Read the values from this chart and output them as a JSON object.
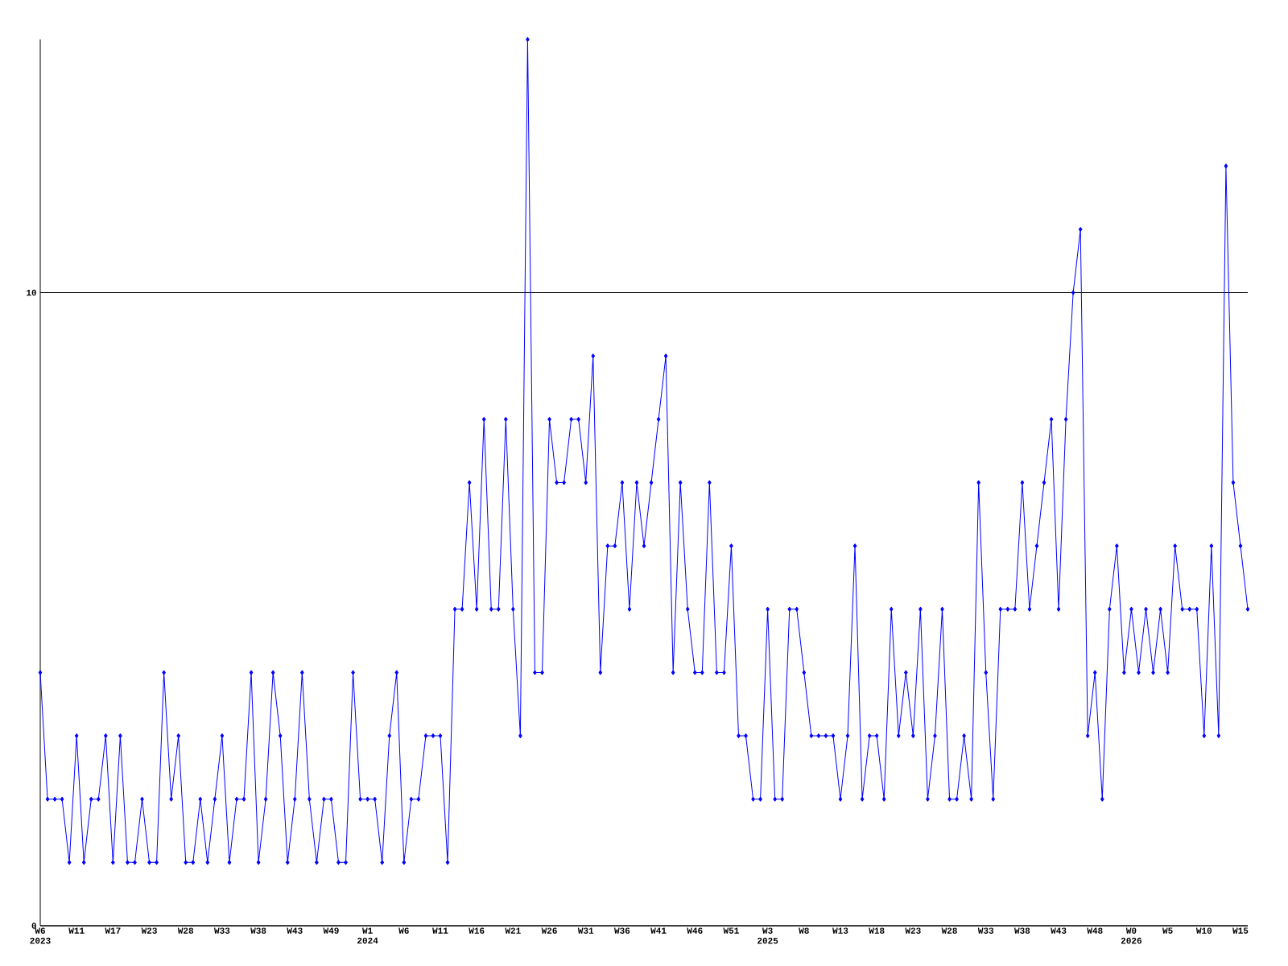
{
  "chart_data": {
    "type": "line",
    "categories": [
      "W6 2023",
      null,
      null,
      null,
      null,
      "W11",
      null,
      null,
      null,
      null,
      "W17",
      null,
      null,
      null,
      null,
      "W23",
      null,
      null,
      null,
      null,
      "W28",
      null,
      null,
      null,
      null,
      "W33",
      null,
      null,
      null,
      null,
      "W38",
      null,
      null,
      null,
      null,
      "W43",
      null,
      null,
      null,
      null,
      "W49",
      null,
      null,
      null,
      null,
      "W1 2024",
      null,
      null,
      null,
      null,
      "W6",
      null,
      null,
      null,
      null,
      "W11",
      null,
      null,
      null,
      null,
      "W16",
      null,
      null,
      null,
      null,
      "W21",
      null,
      null,
      null,
      null,
      "W26",
      null,
      null,
      null,
      null,
      "W31",
      null,
      null,
      null,
      null,
      "W36",
      null,
      null,
      null,
      null,
      "W41",
      null,
      null,
      null,
      null,
      "W46",
      null,
      null,
      null,
      null,
      "W51",
      null,
      null,
      null,
      null,
      "W3 2025",
      null,
      null,
      null,
      null,
      "W8",
      null,
      null,
      null,
      null,
      "W13",
      null,
      null,
      null,
      null,
      "W18",
      null,
      null,
      null,
      null,
      "W23",
      null,
      null,
      null,
      null,
      "W28",
      null,
      null,
      null,
      null,
      "W33",
      null,
      null,
      null,
      null,
      "W38",
      null,
      null,
      null,
      null,
      "W43",
      null,
      null,
      null,
      null,
      "W48",
      null,
      null,
      null,
      null,
      "W0 2026",
      null,
      null,
      null,
      null,
      "W5",
      null,
      null,
      null,
      null,
      "W10",
      null,
      null,
      null,
      null,
      "W15",
      null
    ],
    "values": [
      4,
      2,
      2,
      2,
      1,
      3,
      1,
      2,
      2,
      3,
      1,
      3,
      1,
      1,
      2,
      1,
      1,
      4,
      2,
      3,
      1,
      1,
      2,
      1,
      2,
      3,
      1,
      2,
      2,
      4,
      1,
      2,
      4,
      3,
      1,
      2,
      4,
      2,
      1,
      2,
      2,
      1,
      1,
      4,
      2,
      2,
      2,
      1,
      3,
      4,
      1,
      2,
      2,
      3,
      3,
      3,
      1,
      5,
      5,
      7,
      5,
      8,
      5,
      5,
      8,
      5,
      3,
      14,
      4,
      4,
      8,
      7,
      7,
      8,
      8,
      7,
      9,
      4,
      6,
      6,
      7,
      5,
      7,
      6,
      7,
      8,
      9,
      4,
      7,
      5,
      4,
      4,
      7,
      4,
      4,
      6,
      3,
      3,
      2,
      2,
      5,
      2,
      2,
      5,
      5,
      4,
      3,
      3,
      3,
      3,
      2,
      3,
      6,
      2,
      3,
      3,
      2,
      5,
      3,
      4,
      3,
      5,
      2,
      3,
      5,
      2,
      2,
      3,
      2,
      7,
      4,
      2,
      5,
      5,
      5,
      7,
      5,
      6,
      7,
      8,
      5,
      8,
      10,
      11,
      3,
      4,
      2,
      5,
      6,
      4,
      5,
      4,
      5,
      4,
      5,
      4,
      6,
      5,
      5,
      5,
      3,
      6,
      3,
      12,
      7,
      6,
      5
    ],
    "color": "#0000ff",
    "ylim": [
      0,
      14
    ],
    "yticks": [
      0,
      10
    ],
    "grid": "y",
    "marker": "diamond",
    "line_style": "solid"
  }
}
